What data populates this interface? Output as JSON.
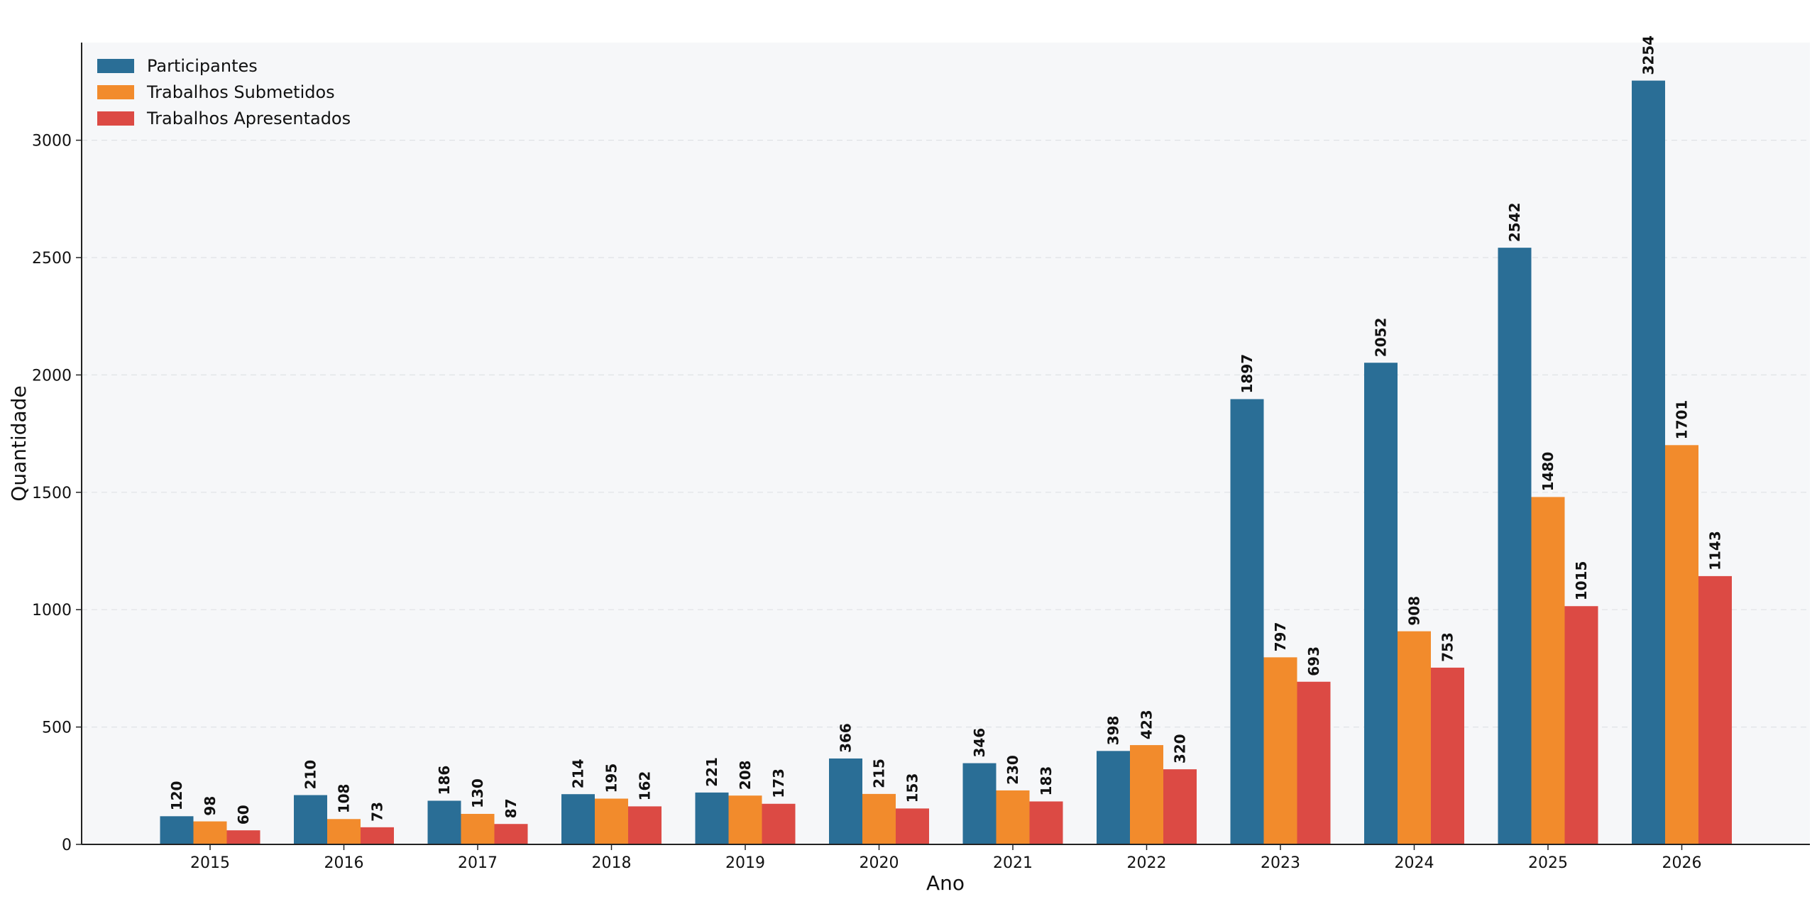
{
  "chart_data": {
    "type": "bar",
    "title": "",
    "xlabel": "Ano",
    "ylabel": "Quantidade",
    "categories": [
      "2015",
      "2016",
      "2017",
      "2018",
      "2019",
      "2020",
      "2021",
      "2022",
      "2023",
      "2024",
      "2025",
      "2026"
    ],
    "series": [
      {
        "name": "Participantes",
        "color": "#2a6e96",
        "values": [
          120,
          210,
          186,
          214,
          221,
          366,
          346,
          398,
          1897,
          2052,
          2542,
          3254
        ]
      },
      {
        "name": "Trabalhos Submetidos",
        "color": "#f28b2c",
        "values": [
          98,
          108,
          130,
          195,
          208,
          215,
          230,
          423,
          797,
          908,
          1480,
          1701
        ]
      },
      {
        "name": "Trabalhos Apresentados",
        "color": "#dc4a44",
        "values": [
          60,
          73,
          87,
          162,
          173,
          153,
          183,
          320,
          693,
          753,
          1015,
          1143
        ]
      }
    ],
    "yticks": [
      0,
      500,
      1000,
      1500,
      2000,
      2500,
      3000
    ],
    "ylim": [
      0,
      3416
    ],
    "grid": "horizontal dashed",
    "legend_position": "top-left",
    "data_labels": "rotated, bold, above bars",
    "plot_background": "#f6f7f9"
  }
}
